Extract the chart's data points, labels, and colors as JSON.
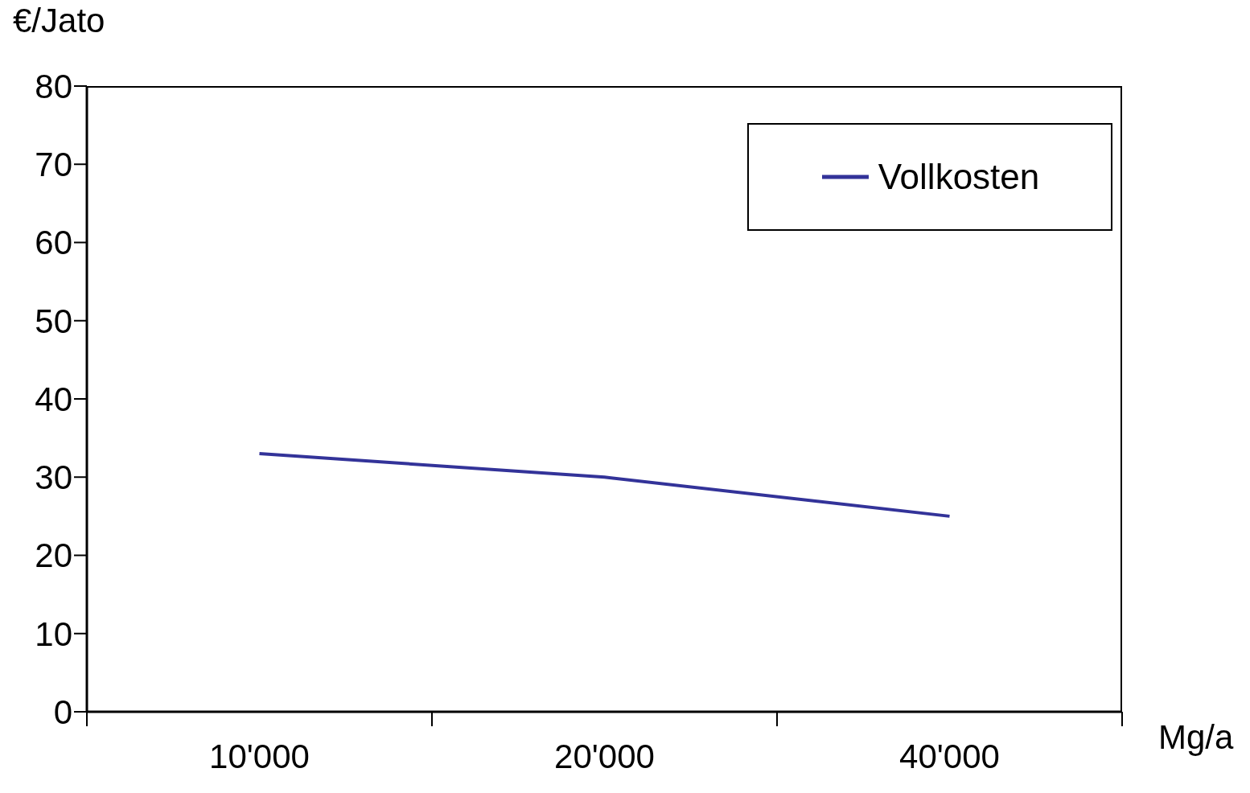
{
  "chart_data": {
    "type": "line",
    "xlabel": "Mg/a",
    "ylabel": "€/Jato",
    "categories": [
      "10'000",
      "20'000",
      "40'000"
    ],
    "series": [
      {
        "name": "Vollkosten",
        "color": "#333399",
        "values": [
          33,
          30,
          25
        ]
      }
    ],
    "ylim": [
      0,
      80
    ],
    "yticks": [
      0,
      10,
      20,
      30,
      40,
      50,
      60,
      70,
      80
    ],
    "grid": false,
    "legend": "top right",
    "marker": "none",
    "line_style": "solid"
  }
}
